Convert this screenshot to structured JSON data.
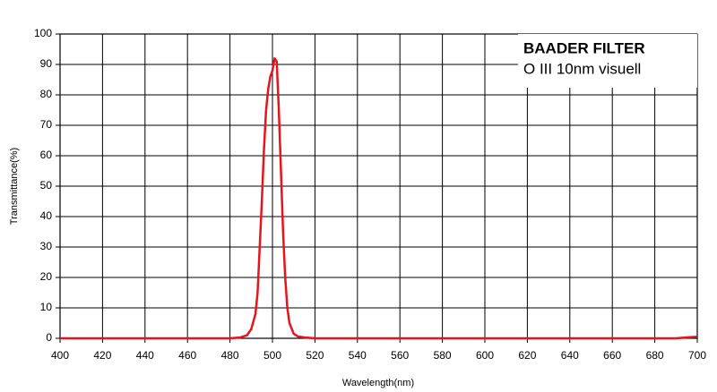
{
  "chart_data": {
    "type": "line",
    "title": "BAADER FILTER",
    "subtitle": "O III 10nm visuell",
    "x_label": "Wavelength(nm)",
    "y_label": "Transmittance(%)",
    "x": [
      400,
      480,
      485,
      488,
      490,
      492,
      493,
      494,
      495,
      496,
      497,
      498,
      499,
      500,
      501,
      502,
      503,
      504,
      505,
      506,
      507,
      508,
      510,
      512,
      515,
      520,
      600,
      690,
      695,
      700
    ],
    "values": [
      0,
      0,
      0.3,
      1,
      3,
      8,
      15,
      30,
      45,
      62,
      75,
      82,
      86,
      88,
      92,
      91,
      75,
      55,
      35,
      20,
      10,
      5,
      1.5,
      0.6,
      0.3,
      0,
      0,
      0,
      0.3,
      0.5
    ],
    "color": "#e8141c",
    "xlim": [
      400,
      700
    ],
    "xticks": [
      400,
      420,
      440,
      460,
      480,
      500,
      520,
      540,
      560,
      580,
      600,
      620,
      640,
      660,
      680,
      700
    ],
    "ylim": [
      0,
      100
    ],
    "yticks": [
      0,
      10,
      20,
      30,
      40,
      50,
      60,
      70,
      80,
      90,
      100
    ],
    "grid": true
  }
}
